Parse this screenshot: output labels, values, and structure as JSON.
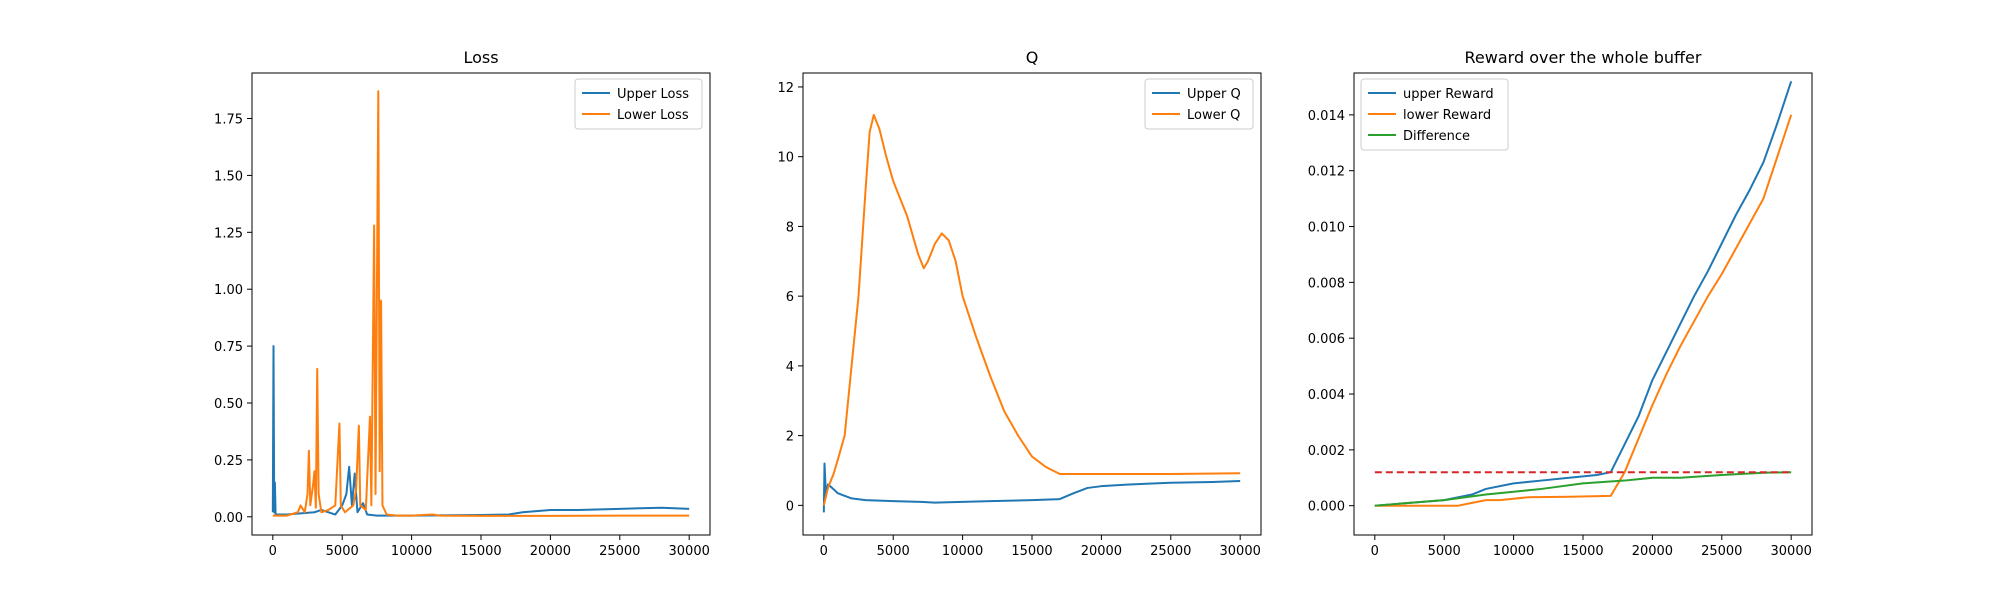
{
  "chart_data": [
    {
      "type": "line",
      "title": "Loss",
      "xlabel": "",
      "ylabel": "",
      "xlim": [
        -1500,
        31500
      ],
      "ylim": [
        -0.08,
        1.95
      ],
      "xticks": [
        0,
        5000,
        10000,
        15000,
        20000,
        25000,
        30000
      ],
      "xtick_labels": [
        "0",
        "5000",
        "10000",
        "15000",
        "20000",
        "25000",
        "30000"
      ],
      "yticks": [
        0.0,
        0.25,
        0.5,
        0.75,
        1.0,
        1.25,
        1.5,
        1.75
      ],
      "ytick_labels": [
        "0.00",
        "0.25",
        "0.50",
        "0.75",
        "1.00",
        "1.25",
        "1.50",
        "1.75"
      ],
      "grid": false,
      "legend_loc": "upper right",
      "series": [
        {
          "name": "Upper Loss",
          "color": "#1f77b4",
          "points": [
            [
              0,
              0.02
            ],
            [
              50,
              0.75
            ],
            [
              100,
              0.02
            ],
            [
              150,
              0.15
            ],
            [
              200,
              0.01
            ],
            [
              500,
              0.01
            ],
            [
              1000,
              0.01
            ],
            [
              2000,
              0.015
            ],
            [
              3000,
              0.02
            ],
            [
              3500,
              0.03
            ],
            [
              4500,
              0.01
            ],
            [
              5000,
              0.05
            ],
            [
              5300,
              0.1
            ],
            [
              5500,
              0.22
            ],
            [
              5700,
              0.05
            ],
            [
              5900,
              0.19
            ],
            [
              6100,
              0.02
            ],
            [
              6500,
              0.06
            ],
            [
              6800,
              0.01
            ],
            [
              7500,
              0.005
            ],
            [
              8000,
              0.005
            ],
            [
              10000,
              0.005
            ],
            [
              12000,
              0.006
            ],
            [
              15000,
              0.008
            ],
            [
              17000,
              0.01
            ],
            [
              18000,
              0.02
            ],
            [
              20000,
              0.03
            ],
            [
              22000,
              0.03
            ],
            [
              25000,
              0.035
            ],
            [
              28000,
              0.04
            ],
            [
              30000,
              0.035
            ]
          ]
        },
        {
          "name": "Lower Loss",
          "color": "#ff7f0e",
          "points": [
            [
              0,
              0.005
            ],
            [
              1000,
              0.005
            ],
            [
              1800,
              0.02
            ],
            [
              2000,
              0.05
            ],
            [
              2300,
              0.02
            ],
            [
              2500,
              0.1
            ],
            [
              2600,
              0.29
            ],
            [
              2700,
              0.05
            ],
            [
              2900,
              0.14
            ],
            [
              3000,
              0.2
            ],
            [
              3100,
              0.04
            ],
            [
              3200,
              0.65
            ],
            [
              3300,
              0.1
            ],
            [
              3500,
              0.02
            ],
            [
              4000,
              0.03
            ],
            [
              4500,
              0.05
            ],
            [
              4800,
              0.41
            ],
            [
              4900,
              0.05
            ],
            [
              5200,
              0.02
            ],
            [
              5800,
              0.05
            ],
            [
              6000,
              0.12
            ],
            [
              6200,
              0.4
            ],
            [
              6300,
              0.05
            ],
            [
              6700,
              0.03
            ],
            [
              7000,
              0.44
            ],
            [
              7100,
              0.05
            ],
            [
              7300,
              1.28
            ],
            [
              7400,
              0.1
            ],
            [
              7600,
              1.87
            ],
            [
              7700,
              0.2
            ],
            [
              7800,
              0.95
            ],
            [
              7900,
              0.05
            ],
            [
              8200,
              0.01
            ],
            [
              9000,
              0.005
            ],
            [
              10000,
              0.005
            ],
            [
              11500,
              0.01
            ],
            [
              12000,
              0.005
            ],
            [
              15000,
              0.004
            ],
            [
              20000,
              0.004
            ],
            [
              25000,
              0.005
            ],
            [
              30000,
              0.005
            ]
          ]
        }
      ]
    },
    {
      "type": "line",
      "title": "Q",
      "xlabel": "",
      "ylabel": "",
      "xlim": [
        -1500,
        31500
      ],
      "ylim": [
        -0.85,
        12.4
      ],
      "xticks": [
        0,
        5000,
        10000,
        15000,
        20000,
        25000,
        30000
      ],
      "xtick_labels": [
        "0",
        "5000",
        "10000",
        "15000",
        "20000",
        "25000",
        "30000"
      ],
      "yticks": [
        0,
        2,
        4,
        6,
        8,
        10,
        12
      ],
      "ytick_labels": [
        "0",
        "2",
        "4",
        "6",
        "8",
        "10",
        "12"
      ],
      "grid": false,
      "legend_loc": "upper right",
      "series": [
        {
          "name": "Upper Q",
          "color": "#1f77b4",
          "points": [
            [
              0,
              -0.2
            ],
            [
              50,
              1.2
            ],
            [
              150,
              0.3
            ],
            [
              300,
              0.6
            ],
            [
              600,
              0.5
            ],
            [
              1000,
              0.35
            ],
            [
              2000,
              0.2
            ],
            [
              3000,
              0.15
            ],
            [
              5000,
              0.12
            ],
            [
              7000,
              0.1
            ],
            [
              8000,
              0.08
            ],
            [
              10000,
              0.1
            ],
            [
              12000,
              0.12
            ],
            [
              15000,
              0.15
            ],
            [
              17000,
              0.18
            ],
            [
              18000,
              0.35
            ],
            [
              19000,
              0.5
            ],
            [
              20000,
              0.55
            ],
            [
              22000,
              0.6
            ],
            [
              25000,
              0.65
            ],
            [
              28000,
              0.67
            ],
            [
              30000,
              0.7
            ]
          ]
        },
        {
          "name": "Lower Q",
          "color": "#ff7f0e",
          "points": [
            [
              0,
              0
            ],
            [
              300,
              0.5
            ],
            [
              700,
              0.9
            ],
            [
              1000,
              1.3
            ],
            [
              1500,
              2.0
            ],
            [
              2000,
              4.0
            ],
            [
              2500,
              6.0
            ],
            [
              3000,
              9.0
            ],
            [
              3300,
              10.7
            ],
            [
              3600,
              11.2
            ],
            [
              4000,
              10.8
            ],
            [
              4500,
              10.0
            ],
            [
              5000,
              9.3
            ],
            [
              6000,
              8.3
            ],
            [
              6800,
              7.2
            ],
            [
              7200,
              6.8
            ],
            [
              7500,
              7.0
            ],
            [
              8000,
              7.5
            ],
            [
              8500,
              7.8
            ],
            [
              9000,
              7.6
            ],
            [
              9500,
              7.0
            ],
            [
              10000,
              6.0
            ],
            [
              11000,
              4.8
            ],
            [
              12000,
              3.7
            ],
            [
              13000,
              2.7
            ],
            [
              14000,
              2.0
            ],
            [
              15000,
              1.4
            ],
            [
              16000,
              1.1
            ],
            [
              17000,
              0.9
            ],
            [
              18000,
              0.9
            ],
            [
              20000,
              0.9
            ],
            [
              25000,
              0.9
            ],
            [
              30000,
              0.92
            ]
          ]
        }
      ]
    },
    {
      "type": "line",
      "title": "Reward over the whole buffer",
      "xlabel": "",
      "ylabel": "",
      "xlim": [
        -1500,
        31500
      ],
      "ylim": [
        -0.00105,
        0.0155
      ],
      "xticks": [
        0,
        5000,
        10000,
        15000,
        20000,
        25000,
        30000
      ],
      "xtick_labels": [
        "0",
        "5000",
        "10000",
        "15000",
        "20000",
        "25000",
        "30000"
      ],
      "yticks": [
        0.0,
        0.002,
        0.004,
        0.006,
        0.008,
        0.01,
        0.012,
        0.014
      ],
      "ytick_labels": [
        "0.000",
        "0.002",
        "0.004",
        "0.006",
        "0.008",
        "0.010",
        "0.012",
        "0.014"
      ],
      "grid": false,
      "legend_loc": "upper left",
      "series": [
        {
          "name": "upper Reward",
          "color": "#1f77b4",
          "points": [
            [
              0,
              0
            ],
            [
              5000,
              0.0002
            ],
            [
              7000,
              0.0004
            ],
            [
              8000,
              0.0006
            ],
            [
              10000,
              0.0008
            ],
            [
              12000,
              0.0009
            ],
            [
              14000,
              0.001
            ],
            [
              16000,
              0.0011
            ],
            [
              17000,
              0.0012
            ],
            [
              18000,
              0.0022
            ],
            [
              19000,
              0.0032
            ],
            [
              20000,
              0.0045
            ],
            [
              21000,
              0.0055
            ],
            [
              22000,
              0.0065
            ],
            [
              23000,
              0.0075
            ],
            [
              24000,
              0.0084
            ],
            [
              25000,
              0.0094
            ],
            [
              26000,
              0.0104
            ],
            [
              27000,
              0.0113
            ],
            [
              28000,
              0.0123
            ],
            [
              29000,
              0.0137
            ],
            [
              30000,
              0.0152
            ]
          ]
        },
        {
          "name": "lower Reward",
          "color": "#ff7f0e",
          "points": [
            [
              0,
              0
            ],
            [
              6000,
              0
            ],
            [
              7000,
              0.0001
            ],
            [
              8000,
              0.0002
            ],
            [
              9000,
              0.0002
            ],
            [
              11000,
              0.0003
            ],
            [
              14000,
              0.00032
            ],
            [
              17000,
              0.00035
            ],
            [
              18000,
              0.0012
            ],
            [
              19000,
              0.0024
            ],
            [
              20000,
              0.0036
            ],
            [
              21000,
              0.0047
            ],
            [
              22000,
              0.0057
            ],
            [
              23000,
              0.0066
            ],
            [
              24000,
              0.0075
            ],
            [
              25000,
              0.0083
            ],
            [
              26000,
              0.0092
            ],
            [
              27000,
              0.0101
            ],
            [
              28000,
              0.011
            ],
            [
              29000,
              0.0125
            ],
            [
              30000,
              0.014
            ]
          ]
        },
        {
          "name": "Difference",
          "color": "#2ca02c",
          "points": [
            [
              0,
              0
            ],
            [
              5000,
              0.0002
            ],
            [
              8000,
              0.0004
            ],
            [
              10000,
              0.0005
            ],
            [
              12000,
              0.0006
            ],
            [
              15000,
              0.0008
            ],
            [
              18000,
              0.0009
            ],
            [
              20000,
              0.001
            ],
            [
              22000,
              0.001
            ],
            [
              25000,
              0.0011
            ],
            [
              28000,
              0.00118
            ],
            [
              30000,
              0.0012
            ]
          ]
        },
        {
          "name": "",
          "color": "#d62728",
          "dashed": true,
          "points": [
            [
              0,
              0.0012
            ],
            [
              30000,
              0.0012
            ]
          ]
        }
      ]
    }
  ]
}
